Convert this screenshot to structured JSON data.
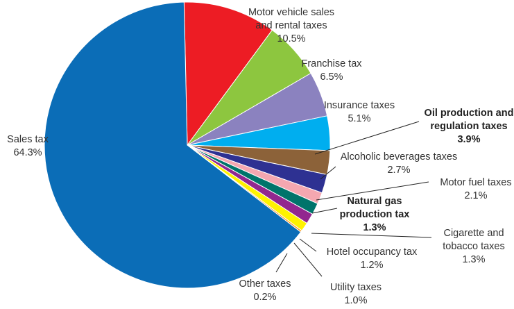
{
  "chart_data": {
    "type": "pie",
    "title": "",
    "slices": [
      {
        "label": "Sales tax",
        "display": "64.3%",
        "value": 64.3,
        "color": "#0b6db7",
        "bold": false
      },
      {
        "label": "Motor vehicle sales and rental taxes",
        "display": "10.5%",
        "value": 10.5,
        "color": "#ed1c24",
        "bold": false
      },
      {
        "label": "Franchise tax",
        "display": "6.5%",
        "value": 6.5,
        "color": "#8dc63f",
        "bold": false
      },
      {
        "label": "Insurance taxes",
        "display": "5.1%",
        "value": 5.1,
        "color": "#8b82bf",
        "bold": false
      },
      {
        "label": "Oil production and regulation taxes",
        "display": "3.9%",
        "value": 3.9,
        "color": "#00aeef",
        "bold": true
      },
      {
        "label": "Alcoholic beverages taxes",
        "display": "2.7%",
        "value": 2.7,
        "color": "#8c6239",
        "bold": false
      },
      {
        "label": "Motor fuel taxes",
        "display": "2.1%",
        "value": 2.1,
        "color": "#2e3192",
        "bold": false
      },
      {
        "label": "Natural gas production tax",
        "display": "1.3%",
        "value": 1.3,
        "color": "#f4a7b0",
        "bold": true
      },
      {
        "label": "Cigarette and tobacco taxes",
        "display": "1.3%",
        "value": 1.3,
        "color": "#00746b",
        "bold": false
      },
      {
        "label": "Hotel occupancy tax",
        "display": "1.2%",
        "value": 1.2,
        "color": "#92278f",
        "bold": false
      },
      {
        "label": "Utility taxes",
        "display": "1.0%",
        "value": 1.0,
        "color": "#fff200",
        "bold": false
      },
      {
        "label": "Other taxes",
        "display": "0.2%",
        "value": 0.2,
        "color": "#f7941d",
        "bold": false
      }
    ],
    "label_lines": [
      [
        "Sales tax",
        "64.3%"
      ],
      [
        "Motor vehicle sales",
        "and rental taxes",
        "10.5%"
      ],
      [
        "Franchise tax",
        "6.5%"
      ],
      [
        "Insurance taxes",
        "5.1%"
      ],
      [
        "Oil production and",
        "regulation taxes",
        "3.9%"
      ],
      [
        "Alcoholic beverages taxes",
        "2.7%"
      ],
      [
        "Motor fuel taxes",
        "2.1%"
      ],
      [
        "Natural gas",
        "production tax",
        "1.3%"
      ],
      [
        "Cigarette and",
        "tobacco taxes",
        "1.3%"
      ],
      [
        "Hotel occupancy tax",
        "1.2%"
      ],
      [
        "Utility taxes",
        "1.0%"
      ],
      [
        "Other taxes",
        "0.2%"
      ]
    ]
  }
}
